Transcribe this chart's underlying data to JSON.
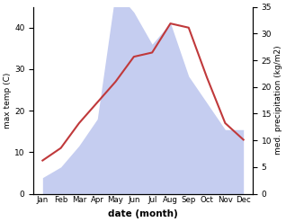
{
  "months": [
    "Jan",
    "Feb",
    "Mar",
    "Apr",
    "May",
    "Jun",
    "Jul",
    "Aug",
    "Sep",
    "Oct",
    "Nov",
    "Dec"
  ],
  "temp": [
    8,
    11,
    17,
    22,
    27,
    33,
    34,
    41,
    40,
    28,
    17,
    13
  ],
  "precip": [
    3,
    5,
    9,
    14,
    38,
    34,
    28,
    32,
    22,
    17,
    12,
    12
  ],
  "temp_color": "#c0393b",
  "precip_fill_color": "#c5cdf0",
  "temp_ylim": [
    0,
    45
  ],
  "precip_ylim": [
    0,
    35
  ],
  "temp_yticks": [
    0,
    10,
    20,
    30,
    40
  ],
  "precip_yticks": [
    0,
    5,
    10,
    15,
    20,
    25,
    30,
    35
  ],
  "xlabel": "date (month)",
  "ylabel_left": "max temp (C)",
  "ylabel_right": "med. precipitation (kg/m2)"
}
